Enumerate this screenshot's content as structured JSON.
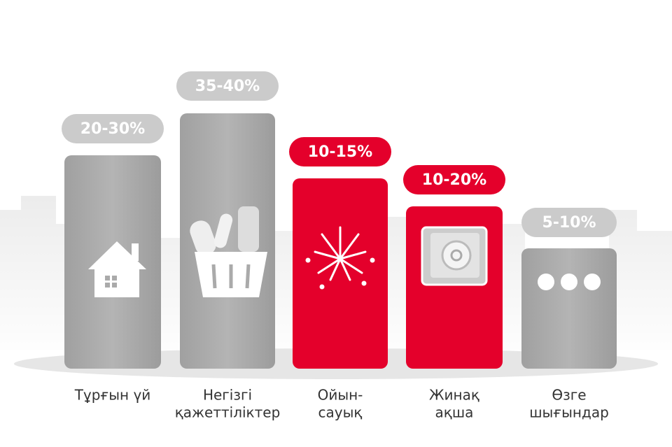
{
  "items": [
    {
      "share": "20-30%",
      "label_lines": [
        "Тұрғын үй"
      ]
    },
    {
      "share": "35-40%",
      "label_lines": [
        "Негізгі",
        "қажеттіліктер"
      ]
    },
    {
      "share": "10-15%",
      "label_lines": [
        "Ойын-",
        "сауық"
      ]
    },
    {
      "share": "10-20%",
      "label_lines": [
        "Жинақ",
        "ақша"
      ]
    },
    {
      "share": "5-10%",
      "label_lines": [
        "Өзге",
        "шығындар"
      ]
    }
  ]
}
